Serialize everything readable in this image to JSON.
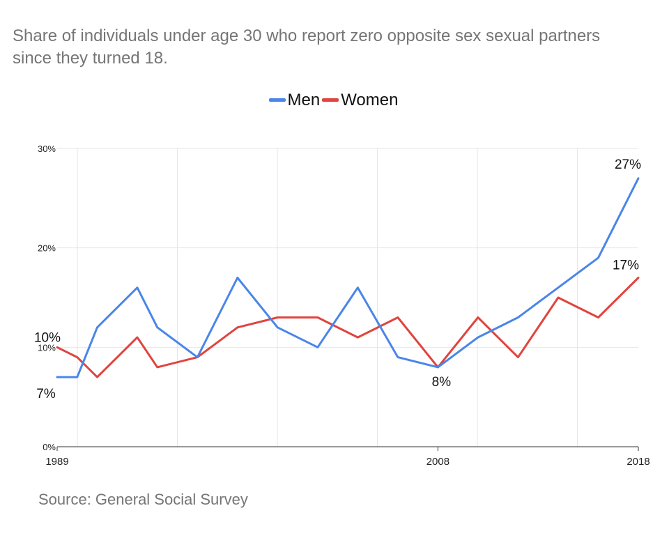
{
  "title_lines": [
    "Share of individuals under age 30 who report zero opposite sex sexual partners",
    "since they turned 18."
  ],
  "source": "Source: General Social Survey",
  "chart_data": {
    "type": "line",
    "title": "Share of individuals under age 30 who report zero opposite sex sexual partners since they turned 18.",
    "xlabel": "",
    "ylabel": "",
    "x": [
      1989,
      1990,
      1991,
      1993,
      1994,
      1996,
      1998,
      2000,
      2002,
      2004,
      2006,
      2008,
      2010,
      2012,
      2014,
      2016,
      2018
    ],
    "x_tick_labels": [
      "1989",
      "2008",
      "2018"
    ],
    "ylim": [
      0,
      30
    ],
    "y_ticks": [
      0,
      10,
      20,
      30
    ],
    "y_tick_labels": [
      "0%",
      "10%",
      "20%",
      "30%"
    ],
    "grid": true,
    "legend_position": "top-center",
    "series": [
      {
        "name": "Men",
        "color": "#4a86e8",
        "values": [
          7,
          7,
          12,
          16,
          12,
          9,
          17,
          12,
          10,
          16,
          9,
          8,
          11,
          13,
          16,
          19,
          27
        ]
      },
      {
        "name": "Women",
        "color": "#e0443e",
        "values": [
          10,
          9,
          7,
          11,
          8,
          9,
          12,
          13,
          13,
          11,
          13,
          8,
          13,
          9,
          15,
          13,
          17
        ]
      }
    ],
    "annotations": [
      {
        "series": 1,
        "index": 0,
        "text": "10%"
      },
      {
        "series": 0,
        "index": 0,
        "text": "7%"
      },
      {
        "series": 0,
        "index": 11,
        "text": "8%"
      },
      {
        "series": 0,
        "index": 16,
        "text": "27%"
      },
      {
        "series": 1,
        "index": 16,
        "text": "17%"
      }
    ]
  }
}
